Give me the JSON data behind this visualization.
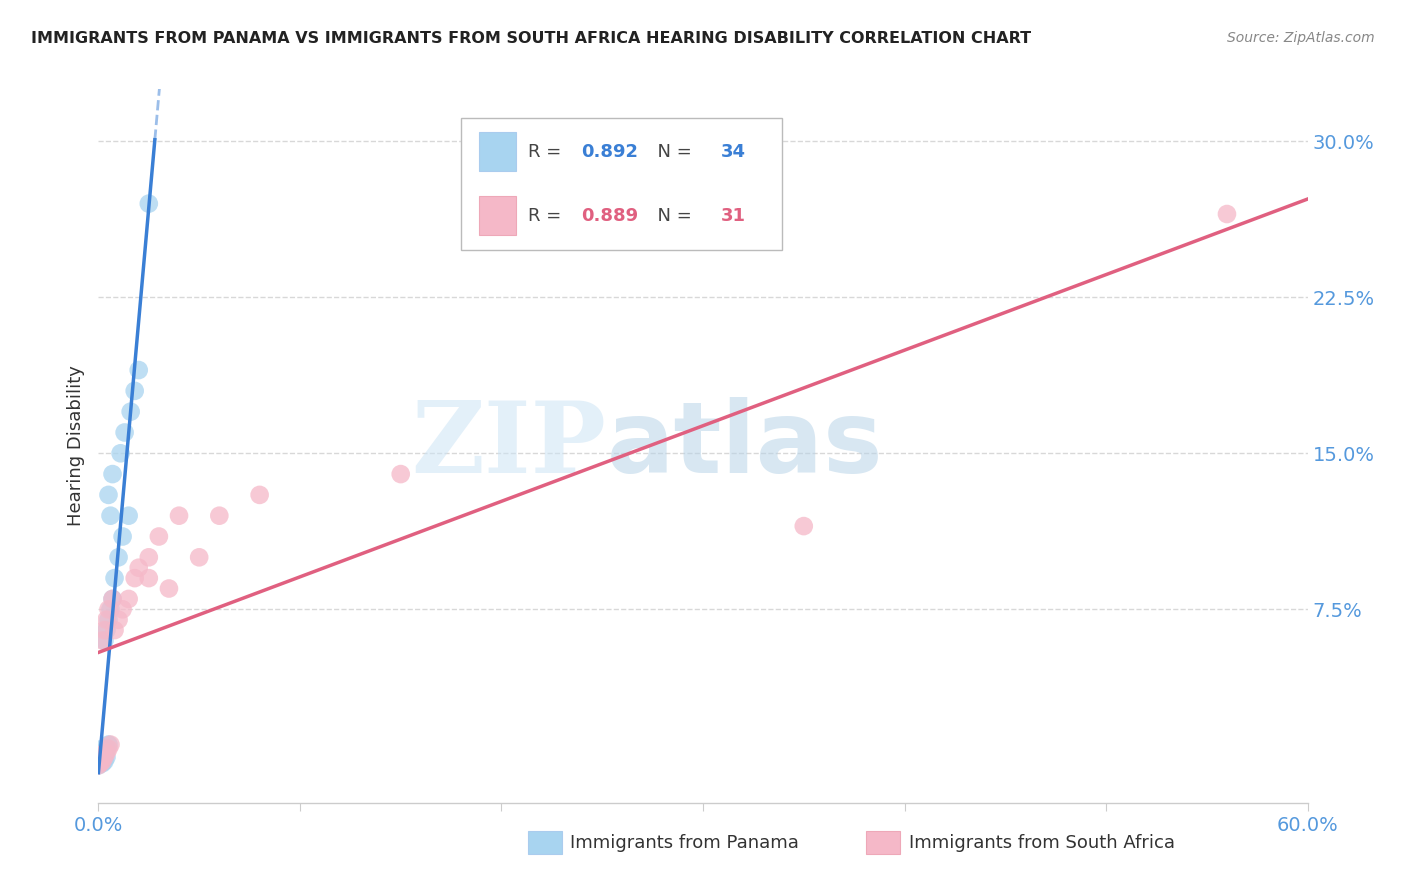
{
  "title": "IMMIGRANTS FROM PANAMA VS IMMIGRANTS FROM SOUTH AFRICA HEARING DISABILITY CORRELATION CHART",
  "source": "Source: ZipAtlas.com",
  "ylabel": "Hearing Disability",
  "ytick_labels": [
    "7.5%",
    "15.0%",
    "22.5%",
    "30.0%"
  ],
  "ytick_values": [
    0.075,
    0.15,
    0.225,
    0.3
  ],
  "xlim": [
    0.0,
    0.6
  ],
  "ylim": [
    -0.018,
    0.325
  ],
  "watermark_zip": "ZIP",
  "watermark_atlas": "atlas",
  "panama_R": 0.892,
  "panama_N": 34,
  "southafrica_R": 0.889,
  "southafrica_N": 31,
  "panama_color": "#a8d4f0",
  "southafrica_color": "#f5b8c8",
  "panama_line_color": "#3a7fd5",
  "southafrica_line_color": "#e06080",
  "panama_x": [
    0.0,
    0.001,
    0.001,
    0.001,
    0.001,
    0.002,
    0.002,
    0.002,
    0.002,
    0.002,
    0.003,
    0.003,
    0.003,
    0.003,
    0.004,
    0.004,
    0.004,
    0.005,
    0.005,
    0.005,
    0.006,
    0.006,
    0.007,
    0.007,
    0.008,
    0.01,
    0.011,
    0.012,
    0.013,
    0.015,
    0.016,
    0.018,
    0.02,
    0.025
  ],
  "panama_y": [
    0.0,
    0.001,
    0.002,
    0.003,
    0.005,
    0.001,
    0.003,
    0.004,
    0.006,
    0.008,
    0.002,
    0.004,
    0.006,
    0.06,
    0.004,
    0.008,
    0.065,
    0.01,
    0.07,
    0.13,
    0.075,
    0.12,
    0.08,
    0.14,
    0.09,
    0.1,
    0.15,
    0.11,
    0.16,
    0.12,
    0.17,
    0.18,
    0.19,
    0.27
  ],
  "southafrica_x": [
    0.0,
    0.001,
    0.001,
    0.001,
    0.002,
    0.002,
    0.003,
    0.003,
    0.004,
    0.004,
    0.005,
    0.005,
    0.006,
    0.007,
    0.008,
    0.01,
    0.012,
    0.015,
    0.018,
    0.02,
    0.025,
    0.03,
    0.035,
    0.04,
    0.05,
    0.06,
    0.08,
    0.15,
    0.35,
    0.56,
    0.025
  ],
  "southafrica_y": [
    0.0,
    0.001,
    0.003,
    0.005,
    0.002,
    0.06,
    0.004,
    0.065,
    0.006,
    0.07,
    0.008,
    0.075,
    0.01,
    0.08,
    0.065,
    0.07,
    0.075,
    0.08,
    0.09,
    0.095,
    0.1,
    0.11,
    0.085,
    0.12,
    0.1,
    0.12,
    0.13,
    0.14,
    0.115,
    0.265,
    0.09
  ],
  "background_color": "#ffffff",
  "grid_color": "#d8d8d8"
}
